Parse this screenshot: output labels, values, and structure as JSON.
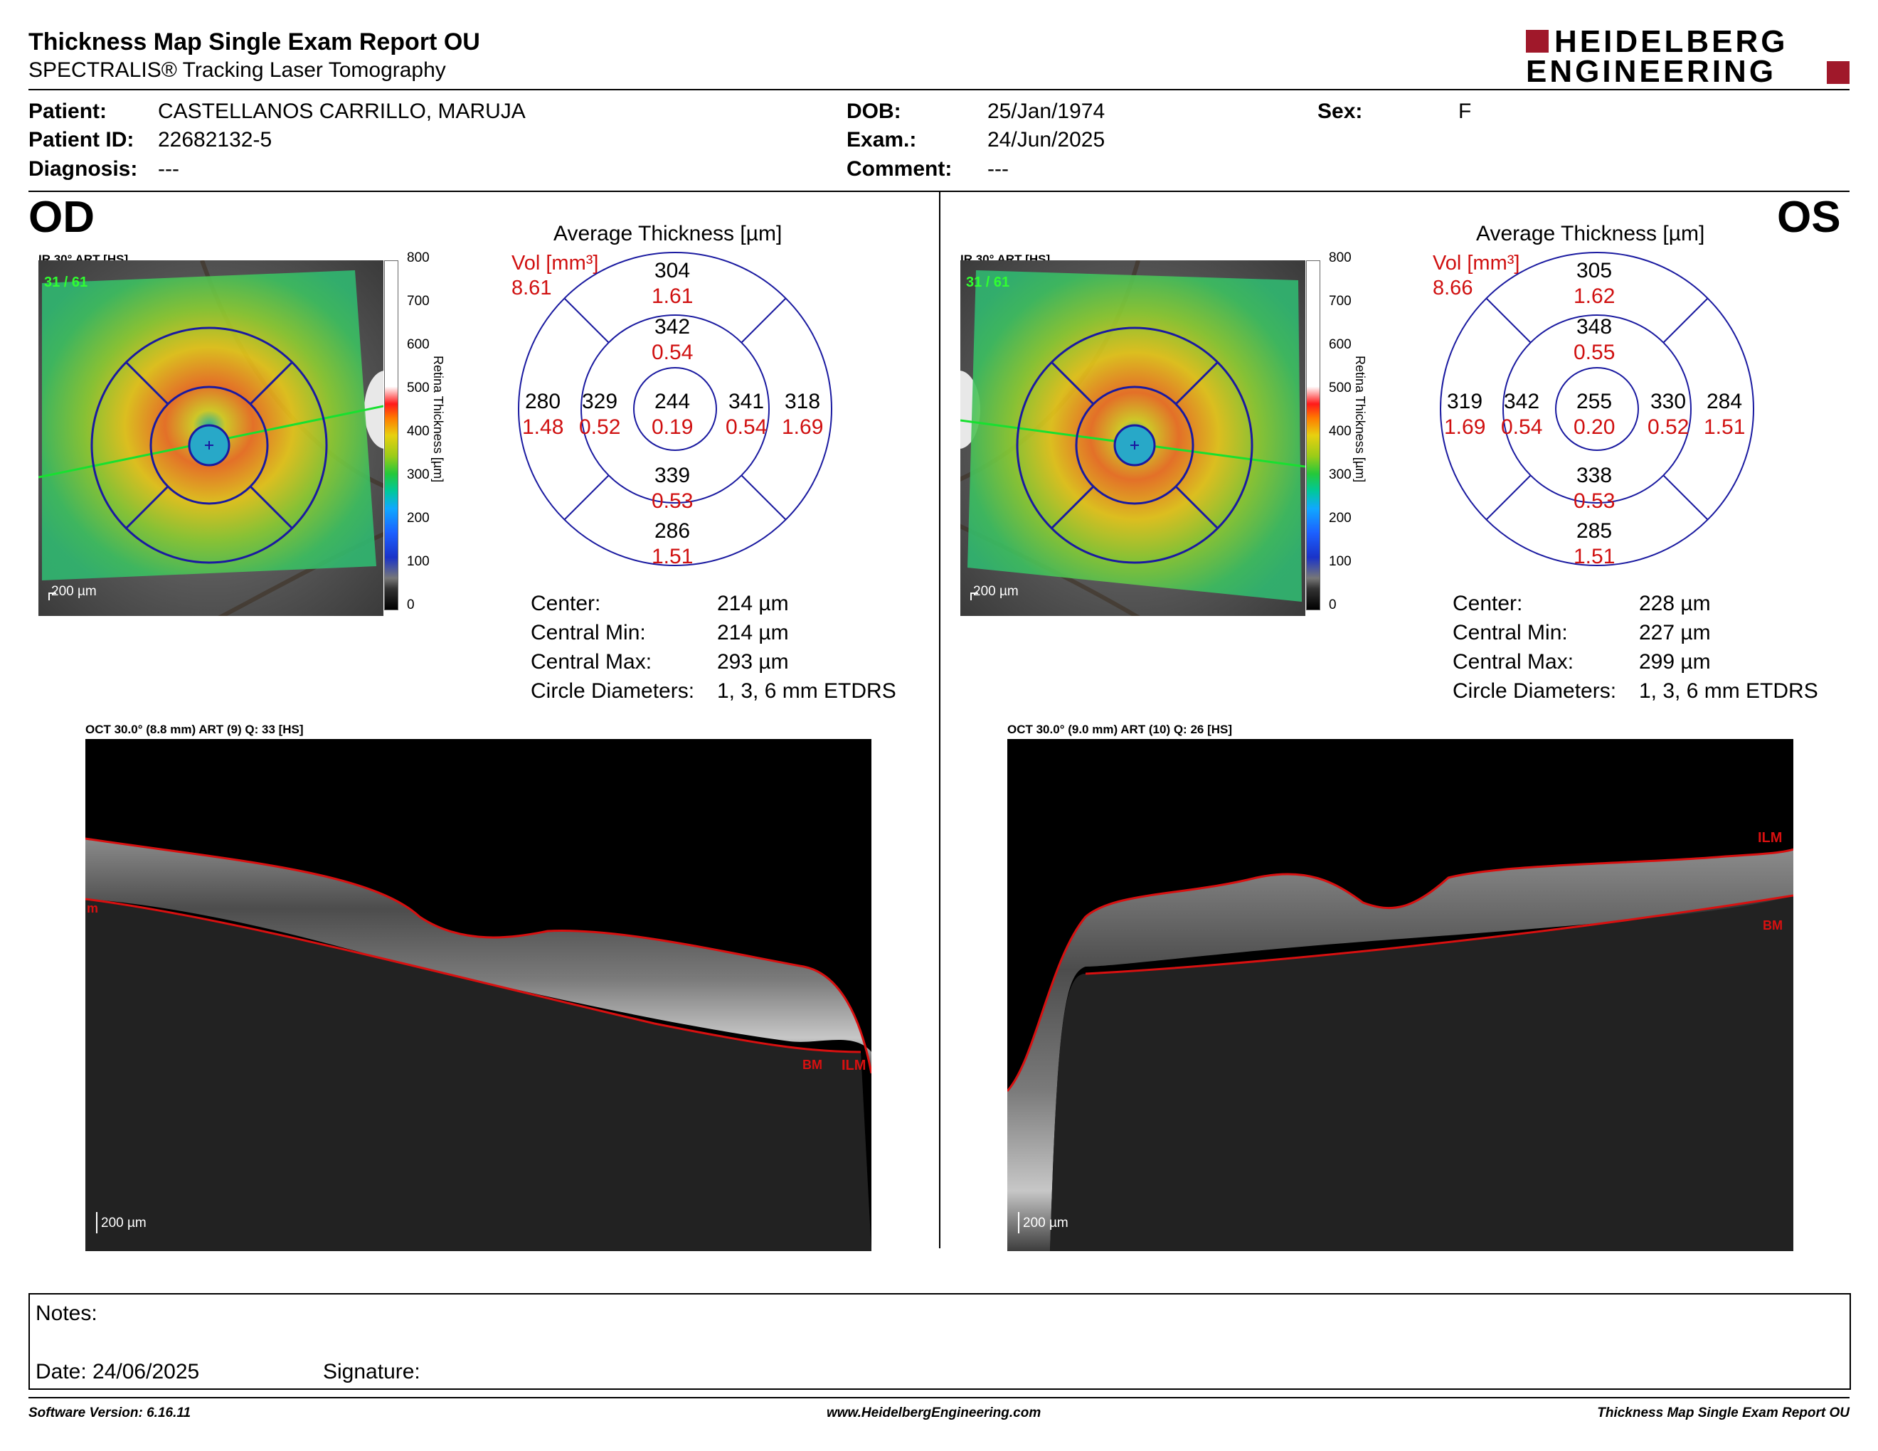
{
  "header": {
    "title": "Thickness Map Single Exam Report OU",
    "subtitle": "SPECTRALIS® Tracking Laser Tomography",
    "logo_line1": "HEIDELBERG",
    "logo_line2": "ENGINEERING",
    "logo_color": "#a0182a"
  },
  "patient": {
    "patient_label": "Patient:",
    "patient_value": "CASTELLANOS CARRILLO, MARUJA",
    "id_label": "Patient ID:",
    "id_value": "22682132-5",
    "diagnosis_label": "Diagnosis:",
    "diagnosis_value": "---",
    "dob_label": "DOB:",
    "dob_value": "25/Jan/1974",
    "exam_label": "Exam.:",
    "exam_value": "24/Jun/2025",
    "comment_label": "Comment:",
    "comment_value": "---",
    "sex_label": "Sex:",
    "sex_value": "F"
  },
  "od": {
    "eye": "OD",
    "fundus_label": "IR 30° ART [HS]",
    "fundus_counter": "31 / 61",
    "scale_bar": "200 µm",
    "colorbar_ticks": [
      "800",
      "700",
      "600",
      "500",
      "400",
      "300",
      "200",
      "100",
      "0"
    ],
    "colorbar_title": "Retina Thickness [µm]",
    "grid_title": "Average Thickness [µm]",
    "vol_label": "Vol [mm³]",
    "vol_total": "8.61",
    "sectors": {
      "outer_sup": {
        "t": "304",
        "v": "1.61"
      },
      "inner_sup": {
        "t": "342",
        "v": "0.54"
      },
      "outer_temp": {
        "t": "280",
        "v": "1.48"
      },
      "inner_temp": {
        "t": "329",
        "v": "0.52"
      },
      "center": {
        "t": "244",
        "v": "0.19"
      },
      "inner_nasal": {
        "t": "341",
        "v": "0.54"
      },
      "outer_nasal": {
        "t": "318",
        "v": "1.69"
      },
      "inner_inf": {
        "t": "339",
        "v": "0.53"
      },
      "outer_inf": {
        "t": "286",
        "v": "1.51"
      }
    },
    "stats": [
      {
        "label": "Center:",
        "value": "214 µm"
      },
      {
        "label": "Central Min:",
        "value": "214 µm"
      },
      {
        "label": "Central Max:",
        "value": "293 µm"
      },
      {
        "label": "Circle Diameters:",
        "value": "1, 3, 6 mm ETDRS"
      }
    ],
    "oct_label": "OCT 30.0° (8.8 mm) ART (9) Q: 33 [HS]",
    "oct_scale": "200 µm",
    "ilm": "ILM",
    "bm": "BM",
    "edge_label": "m"
  },
  "os": {
    "eye": "OS",
    "fundus_label": "IR 30° ART [HS]",
    "fundus_counter": "31 / 61",
    "scale_bar": "200 µm",
    "colorbar_ticks": [
      "800",
      "700",
      "600",
      "500",
      "400",
      "300",
      "200",
      "100",
      "0"
    ],
    "colorbar_title": "Retina Thickness [µm]",
    "grid_title": "Average Thickness [µm]",
    "vol_label": "Vol [mm³]",
    "vol_total": "8.66",
    "sectors": {
      "outer_sup": {
        "t": "305",
        "v": "1.62"
      },
      "inner_sup": {
        "t": "348",
        "v": "0.55"
      },
      "outer_temp": {
        "t": "319",
        "v": "1.69"
      },
      "inner_temp": {
        "t": "342",
        "v": "0.54"
      },
      "center": {
        "t": "255",
        "v": "0.20"
      },
      "inner_nasal": {
        "t": "330",
        "v": "0.52"
      },
      "outer_nasal": {
        "t": "284",
        "v": "1.51"
      },
      "inner_inf": {
        "t": "338",
        "v": "0.53"
      },
      "outer_inf": {
        "t": "285",
        "v": "1.51"
      }
    },
    "stats": [
      {
        "label": "Center:",
        "value": "228 µm"
      },
      {
        "label": "Central Min:",
        "value": "227 µm"
      },
      {
        "label": "Central Max:",
        "value": "299 µm"
      },
      {
        "label": "Circle Diameters:",
        "value": "1, 3, 6 mm ETDRS"
      }
    ],
    "oct_label": "OCT 30.0° (9.0 mm) ART (10) Q: 26 [HS]",
    "oct_scale": "200 µm",
    "ilm": "ILM",
    "bm": "BM"
  },
  "notes": {
    "notes_label": "Notes:",
    "date_label": "Date: 24/06/2025",
    "signature_label": "Signature:"
  },
  "footer": {
    "software": "Software Version: 6.16.11",
    "website": "www.HeidelbergEngineering.com",
    "report": "Thickness Map Single Exam Report OU"
  }
}
